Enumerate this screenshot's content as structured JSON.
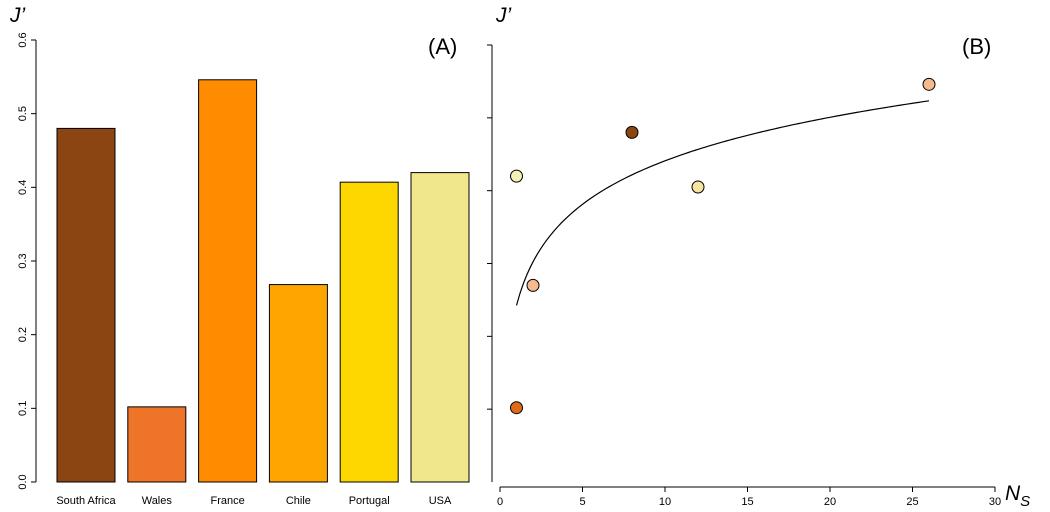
{
  "chart_data": [
    {
      "type": "bar",
      "panel_label": "(A)",
      "ylabel": "J’",
      "xlabel": "",
      "categories": [
        "South Africa",
        "Wales",
        "France",
        "Chile",
        "Portugal",
        "USA"
      ],
      "values": [
        0.48,
        0.102,
        0.546,
        0.268,
        0.407,
        0.42
      ],
      "colors": [
        "#8B4513",
        "#EE7428",
        "#FF8C00",
        "#FFA500",
        "#FFD700",
        "#F0E68C"
      ],
      "ylim": [
        0,
        0.6
      ],
      "yticks": [
        "0.0",
        "0.1",
        "0.2",
        "0.3",
        "0.4",
        "0.5",
        "0.6"
      ],
      "grid": false
    },
    {
      "type": "scatter",
      "panel_label": "(B)",
      "ylabel": "J’",
      "xlabel": "N",
      "xlabel_subscript": "S",
      "xlim": [
        0,
        30
      ],
      "ylim": [
        0,
        0.6
      ],
      "xticks": [
        "0",
        "5",
        "10",
        "15",
        "20",
        "25",
        "30"
      ],
      "points": [
        {
          "x": 1,
          "y": 0.102,
          "color": "#E06A1C"
        },
        {
          "x": 2,
          "y": 0.27,
          "color": "#F7B98E"
        },
        {
          "x": 1,
          "y": 0.42,
          "color": "#F4F2B6"
        },
        {
          "x": 8,
          "y": 0.48,
          "color": "#8B4513"
        },
        {
          "x": 12,
          "y": 0.405,
          "color": "#F7E4A2"
        },
        {
          "x": 26,
          "y": 0.546,
          "color": "#F7B98E"
        }
      ],
      "fit": {
        "type": "log",
        "a": 0.2425,
        "b": 0.0862,
        "x_range": [
          1,
          26
        ]
      },
      "grid": false
    }
  ]
}
